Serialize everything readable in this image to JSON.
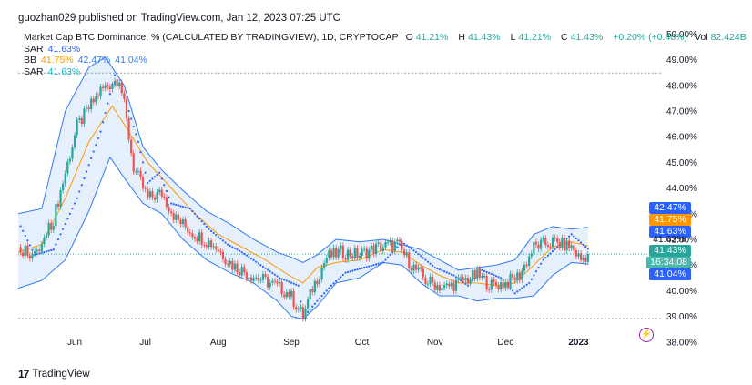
{
  "publisher": "guozhan029 published on TradingView.com, Jan 12, 2023 07:25 UTC",
  "footer_brand": "TradingView",
  "legend": {
    "title": "Market Cap BTC Dominance, % (CALCULATED BY TRADINGVIEW), 1D, CRYPTOCAP",
    "open_label": "O",
    "open": "41.21%",
    "high_label": "H",
    "high": "41.43%",
    "low_label": "L",
    "low": "41.21%",
    "close_label": "C",
    "close": "41.43%",
    "change": "+0.20% (+0.48%)",
    "vol_label": "Vol",
    "vol": "82.424B",
    "sar1_label": "SAR",
    "sar1_value": "41.63%",
    "bb_label": "BB",
    "bb_basis": "41.75%",
    "bb_upper": "42.47%",
    "bb_lower": "41.04%",
    "sar2_label": "SAR",
    "sar2_value": "41.63%"
  },
  "badges": {
    "bb_upper": "42.47%",
    "bb_basis": "41.75%",
    "sar": "41.63%",
    "sar2": "41.63%",
    "price": "41.43%",
    "countdown": "16:34:08",
    "bb_lower": "41.04%"
  },
  "colors": {
    "up": "#26a69a",
    "down": "#ef5350",
    "band": "#3179f5",
    "basis": "#ff9800",
    "sar": "#2962ff",
    "grid_dash": "#9aa0a6",
    "band_fill": "#dbe9fb"
  },
  "chart_data": {
    "type": "candlestick",
    "symbol": "Market Cap BTC Dominance, % (CALCULATED BY TRADINGVIEW)",
    "interval": "1D",
    "ylim": [
      37.85,
      50.3
    ],
    "y_ticks": [
      "50.00%",
      "49.00%",
      "48.00%",
      "47.00%",
      "46.00%",
      "45.00%",
      "44.00%",
      "43.00%",
      "42.00%",
      "41.00%",
      "40.00%",
      "39.00%",
      "38.00%"
    ],
    "x_ticks": [
      "Jun",
      "Jul",
      "Aug",
      "Sep",
      "Oct",
      "Nov",
      "Dec",
      "2023"
    ],
    "x_tick_days": [
      9,
      39,
      70,
      101,
      131,
      162,
      192,
      223
    ],
    "x_range_days": [
      -15,
      258
    ],
    "horizontal_lines": [
      48.48,
      38.92
    ],
    "last_price_line": 41.43,
    "close_path": [
      [
        -15,
        41.7
      ],
      [
        -7,
        41.4
      ],
      [
        0,
        42.8
      ],
      [
        10,
        46.4
      ],
      [
        20,
        47.8
      ],
      [
        28,
        48.3
      ],
      [
        30,
        47.2
      ],
      [
        34,
        44.8
      ],
      [
        40,
        43.6
      ],
      [
        46,
        43.8
      ],
      [
        52,
        42.8
      ],
      [
        60,
        42.2
      ],
      [
        68,
        41.8
      ],
      [
        76,
        41.0
      ],
      [
        84,
        40.6
      ],
      [
        92,
        40.3
      ],
      [
        100,
        39.9
      ],
      [
        104,
        39.3
      ],
      [
        106,
        39.0
      ],
      [
        110,
        40.1
      ],
      [
        116,
        41.3
      ],
      [
        122,
        41.5
      ],
      [
        130,
        41.4
      ],
      [
        138,
        41.7
      ],
      [
        146,
        41.8
      ],
      [
        152,
        41.0
      ],
      [
        158,
        40.4
      ],
      [
        166,
        40.1
      ],
      [
        174,
        40.4
      ],
      [
        180,
        40.6
      ],
      [
        186,
        40.2
      ],
      [
        192,
        40.3
      ],
      [
        198,
        40.6
      ],
      [
        204,
        41.7
      ],
      [
        212,
        41.9
      ],
      [
        220,
        41.7
      ],
      [
        224,
        41.2
      ],
      [
        227,
        41.43
      ]
    ],
    "bb_upper_path": [
      [
        -15,
        43.0
      ],
      [
        -5,
        43.2
      ],
      [
        5,
        47.0
      ],
      [
        15,
        48.7
      ],
      [
        22,
        49.1
      ],
      [
        30,
        48.0
      ],
      [
        38,
        45.6
      ],
      [
        46,
        44.7
      ],
      [
        55,
        43.9
      ],
      [
        65,
        43.1
      ],
      [
        75,
        42.6
      ],
      [
        85,
        42.0
      ],
      [
        95,
        41.5
      ],
      [
        101,
        41.3
      ],
      [
        106,
        41.1
      ],
      [
        112,
        41.4
      ],
      [
        120,
        42.0
      ],
      [
        130,
        41.9
      ],
      [
        140,
        42.0
      ],
      [
        148,
        41.8
      ],
      [
        156,
        41.6
      ],
      [
        164,
        41.2
      ],
      [
        172,
        40.8
      ],
      [
        180,
        40.9
      ],
      [
        188,
        41.0
      ],
      [
        196,
        41.2
      ],
      [
        204,
        42.2
      ],
      [
        212,
        42.5
      ],
      [
        220,
        42.4
      ],
      [
        227,
        42.47
      ]
    ],
    "bb_basis_path": [
      [
        -15,
        41.5
      ],
      [
        -5,
        41.8
      ],
      [
        5,
        43.6
      ],
      [
        15,
        45.8
      ],
      [
        25,
        47.2
      ],
      [
        32,
        46.2
      ],
      [
        40,
        45.0
      ],
      [
        50,
        44.0
      ],
      [
        60,
        43.0
      ],
      [
        70,
        42.2
      ],
      [
        80,
        41.7
      ],
      [
        90,
        41.2
      ],
      [
        100,
        40.6
      ],
      [
        106,
        40.3
      ],
      [
        112,
        40.9
      ],
      [
        120,
        41.1
      ],
      [
        130,
        41.2
      ],
      [
        140,
        41.6
      ],
      [
        148,
        41.5
      ],
      [
        156,
        41.0
      ],
      [
        164,
        40.6
      ],
      [
        172,
        40.3
      ],
      [
        180,
        40.3
      ],
      [
        188,
        40.2
      ],
      [
        196,
        40.3
      ],
      [
        204,
        41.0
      ],
      [
        212,
        41.7
      ],
      [
        220,
        41.9
      ],
      [
        227,
        41.75
      ]
    ],
    "bb_lower_path": [
      [
        -15,
        40.1
      ],
      [
        -5,
        40.4
      ],
      [
        5,
        41.2
      ],
      [
        15,
        43.1
      ],
      [
        24,
        45.2
      ],
      [
        30,
        44.4
      ],
      [
        38,
        43.4
      ],
      [
        46,
        43.0
      ],
      [
        55,
        42.0
      ],
      [
        65,
        41.2
      ],
      [
        75,
        40.7
      ],
      [
        85,
        40.3
      ],
      [
        95,
        39.6
      ],
      [
        101,
        39.0
      ],
      [
        106,
        38.9
      ],
      [
        112,
        39.4
      ],
      [
        120,
        40.3
      ],
      [
        130,
        40.5
      ],
      [
        140,
        41.1
      ],
      [
        148,
        41.0
      ],
      [
        156,
        40.3
      ],
      [
        164,
        39.8
      ],
      [
        172,
        39.8
      ],
      [
        180,
        39.6
      ],
      [
        188,
        39.7
      ],
      [
        196,
        39.7
      ],
      [
        204,
        39.8
      ],
      [
        212,
        40.6
      ],
      [
        220,
        41.1
      ],
      [
        227,
        41.04
      ]
    ],
    "sar_path": [
      [
        -15,
        42.7
      ],
      [
        -8,
        41.4
      ],
      [
        0,
        41.6
      ],
      [
        10,
        43.6
      ],
      [
        20,
        46.2
      ],
      [
        26,
        48.4
      ],
      [
        30,
        47.6
      ],
      [
        36,
        45.8
      ],
      [
        40,
        44.2
      ],
      [
        45,
        44.6
      ],
      [
        50,
        43.4
      ],
      [
        58,
        43.2
      ],
      [
        66,
        42.4
      ],
      [
        74,
        41.8
      ],
      [
        80,
        41.5
      ],
      [
        88,
        41.0
      ],
      [
        96,
        40.5
      ],
      [
        104,
        40.2
      ],
      [
        106,
        38.95
      ],
      [
        112,
        39.6
      ],
      [
        118,
        40.2
      ],
      [
        124,
        40.7
      ],
      [
        132,
        40.9
      ],
      [
        140,
        41.1
      ],
      [
        148,
        41.9
      ],
      [
        154,
        41.5
      ],
      [
        162,
        40.9
      ],
      [
        170,
        40.6
      ],
      [
        176,
        40.2
      ],
      [
        182,
        40.8
      ],
      [
        190,
        40.5
      ],
      [
        196,
        39.9
      ],
      [
        202,
        40.3
      ],
      [
        208,
        41.2
      ],
      [
        214,
        41.7
      ],
      [
        220,
        42.2
      ],
      [
        227,
        41.63
      ]
    ]
  }
}
